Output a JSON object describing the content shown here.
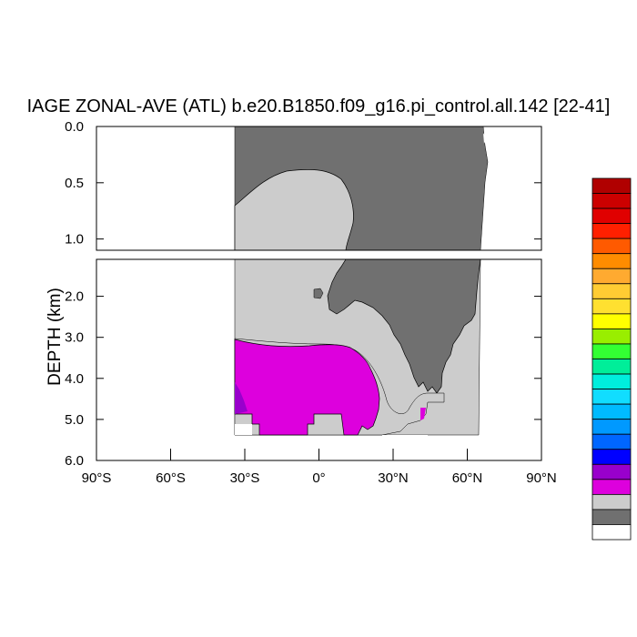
{
  "chart_data": {
    "type": "heatmap",
    "title": "IAGE ZONAL-AVE (ATL) b.e20.B1850.f09_g16.pi_control.all.142 [22-41]",
    "ylabel": "DEPTH (km)",
    "xlabel": "",
    "x_range": [
      -90,
      90
    ],
    "upper_panel": {
      "ylim": [
        0.0,
        1.1
      ],
      "yticks": [
        0.0,
        0.5,
        1.0
      ],
      "ytick_labels": [
        "0.0",
        "0.5",
        "1.0"
      ]
    },
    "lower_panel": {
      "ylim": [
        1.1,
        6.0
      ],
      "yticks": [
        2.0,
        3.0,
        4.0,
        5.0,
        6.0
      ],
      "ytick_labels": [
        "2.0",
        "3.0",
        "4.0",
        "5.0",
        "6.0"
      ]
    },
    "xticks": [
      -90,
      -60,
      -30,
      0,
      30,
      60,
      90
    ],
    "xtick_labels": [
      "90°S",
      "60°S",
      "30°S",
      "0°",
      "30°N",
      "60°N",
      "90°N"
    ],
    "colorbar": {
      "orientation": "vertical",
      "colors_top_to_bottom": [
        "#b00000",
        "#cc0000",
        "#e00000",
        "#ff2000",
        "#ff5a00",
        "#ff8c00",
        "#ffaa30",
        "#ffcc33",
        "#ffe030",
        "#ffff00",
        "#99ee00",
        "#33ff33",
        "#00ee99",
        "#00eedd",
        "#11ddff",
        "#00bbff",
        "#0099ff",
        "#0066ff",
        "#0000ff",
        "#9900cc",
        "#dd00dd",
        "#cccccc",
        "#707070",
        "#ffffff"
      ]
    },
    "colors": {
      "dark_gray": "#707070",
      "light_gray": "#cccccc",
      "magenta": "#dd00dd",
      "purple": "#9900cc"
    }
  }
}
